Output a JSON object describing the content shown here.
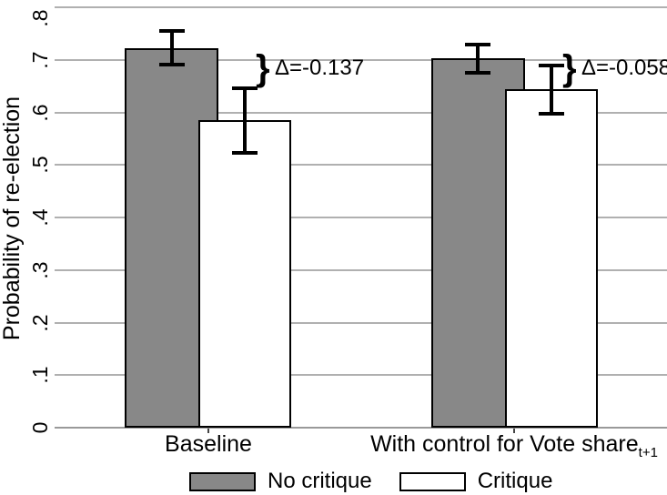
{
  "chart_data": {
    "type": "bar",
    "ylabel": "Probability of re-election",
    "ylim": [
      0,
      0.8
    ],
    "yticks": [
      0,
      0.1,
      0.2,
      0.3,
      0.4,
      0.5,
      0.6,
      0.7,
      0.8
    ],
    "ytick_labels": [
      "0",
      ".1",
      ".2",
      ".3",
      ".4",
      ".5",
      ".6",
      ".7",
      ".8"
    ],
    "grid": true,
    "legend_position": "bottom-center",
    "categories": [
      {
        "label": "Baseline",
        "subscript": ""
      },
      {
        "label": "With control for Vote share",
        "subscript": "t+1"
      }
    ],
    "series": [
      {
        "name": "No critique",
        "fill": "#888888",
        "values": [
          0.722,
          0.703
        ],
        "ci_low": [
          0.687,
          0.672
        ],
        "ci_high": [
          0.758,
          0.733
        ]
      },
      {
        "name": "Critique",
        "fill": "#ffffff",
        "values": [
          0.585,
          0.645
        ],
        "ci_low": [
          0.519,
          0.594
        ],
        "ci_high": [
          0.649,
          0.693
        ]
      }
    ],
    "annotations": [
      {
        "brace": "}",
        "text": "Δ=-0.137",
        "category_index": 0
      },
      {
        "brace": "}",
        "text": "Δ=-0.058",
        "category_index": 1
      }
    ],
    "colors": {
      "bar_border": "#000000",
      "gridline": "#b0b0b0",
      "baseline_axis": "#999999",
      "error_bar": "#000000",
      "text": "#000000",
      "background": "#ffffff"
    }
  }
}
